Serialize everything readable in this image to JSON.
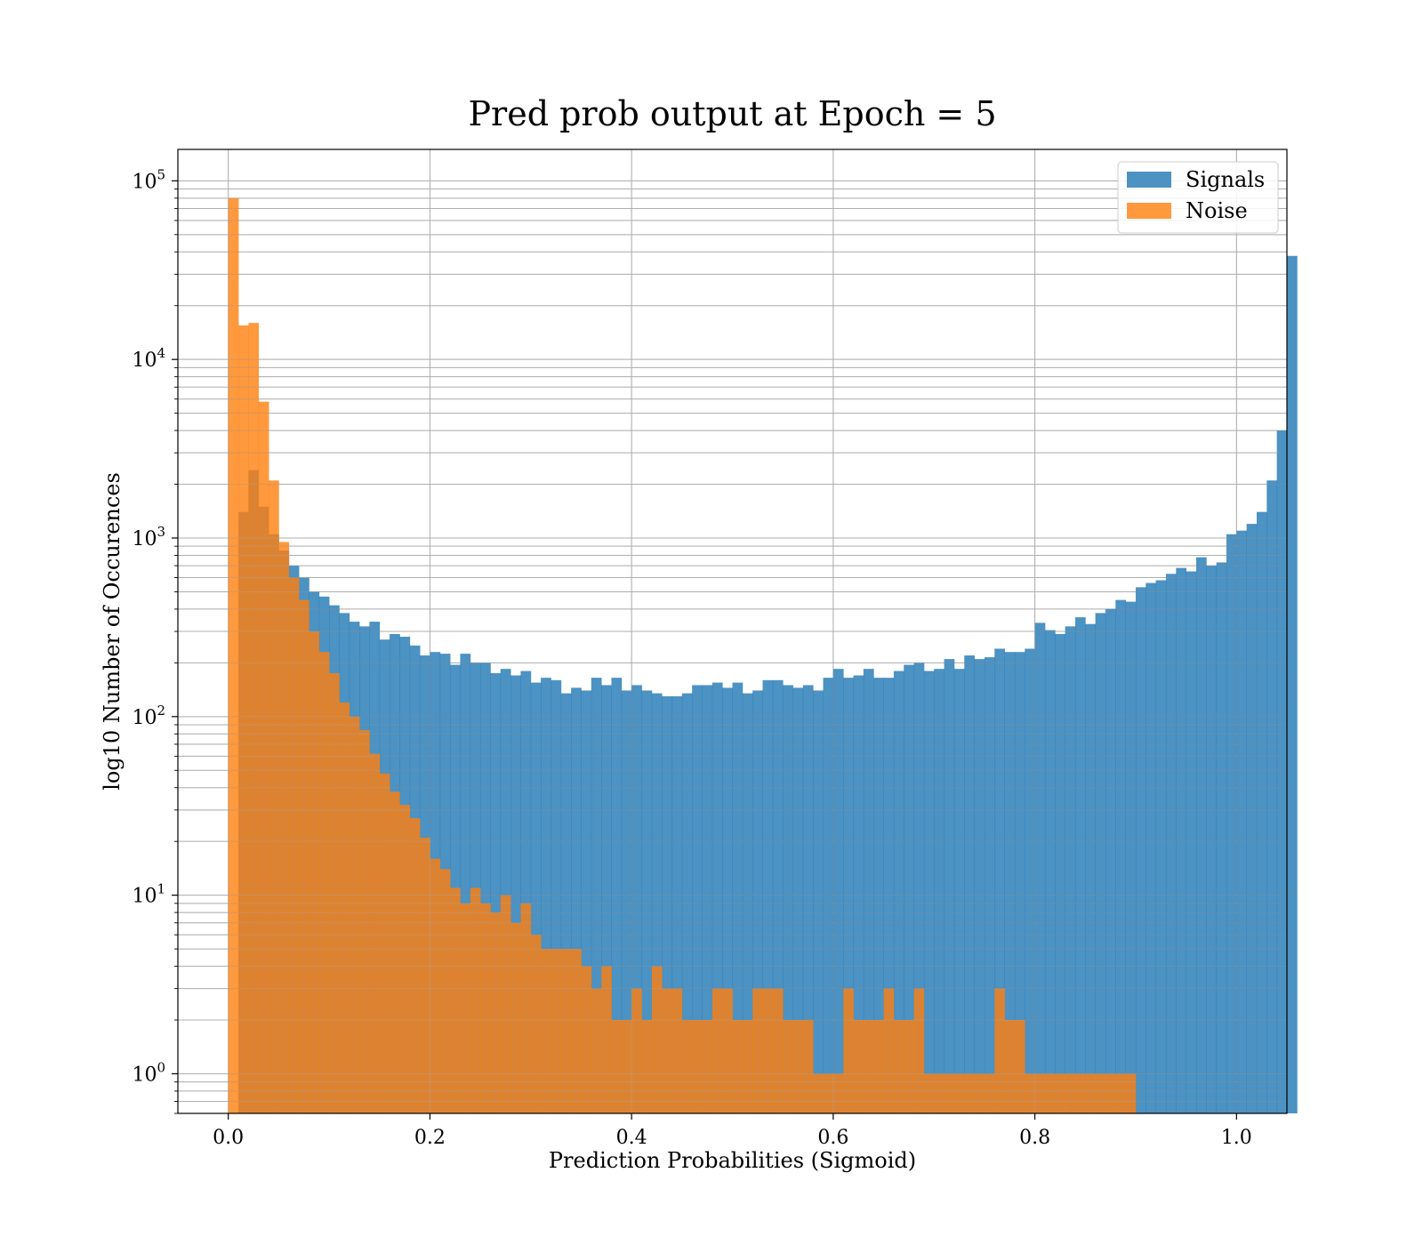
{
  "chart_data": {
    "type": "bar",
    "subtype": "overlapping-histogram",
    "title": "Pred prob output at Epoch = 5",
    "xlabel": "Prediction Probabilities (Sigmoid)",
    "ylabel": "log10 Number of Occurences",
    "yscale": "log",
    "xlim": [
      -0.05,
      1.05
    ],
    "ylim": [
      0.6,
      150000
    ],
    "grid": true,
    "legend_position": "top-right",
    "bin_width": 0.01,
    "bins_start": 0.0,
    "xticks": [
      {
        "value": 0.0,
        "label": "0.0"
      },
      {
        "value": 0.2,
        "label": "0.2"
      },
      {
        "value": 0.4,
        "label": "0.4"
      },
      {
        "value": 0.6,
        "label": "0.6"
      },
      {
        "value": 0.8,
        "label": "0.8"
      },
      {
        "value": 1.0,
        "label": "1.0"
      }
    ],
    "yticks": [
      {
        "value": 1,
        "base": "10",
        "exp": "0"
      },
      {
        "value": 10,
        "base": "10",
        "exp": "1"
      },
      {
        "value": 100,
        "base": "10",
        "exp": "2"
      },
      {
        "value": 1000,
        "base": "10",
        "exp": "3"
      },
      {
        "value": 10000,
        "base": "10",
        "exp": "4"
      },
      {
        "value": 100000,
        "base": "10",
        "exp": "5"
      }
    ],
    "series": [
      {
        "name": "Signals",
        "color": "#1f77b4",
        "values": [
          0,
          1400,
          2400,
          1500,
          1050,
          850,
          700,
          600,
          500,
          470,
          420,
          380,
          340,
          320,
          340,
          270,
          290,
          280,
          250,
          220,
          230,
          225,
          195,
          225,
          200,
          200,
          175,
          185,
          170,
          180,
          155,
          165,
          160,
          135,
          145,
          140,
          165,
          150,
          165,
          140,
          150,
          140,
          135,
          130,
          130,
          135,
          150,
          150,
          155,
          145,
          155,
          135,
          140,
          160,
          160,
          150,
          145,
          150,
          140,
          165,
          185,
          165,
          170,
          185,
          165,
          165,
          180,
          195,
          200,
          180,
          185,
          210,
          185,
          220,
          210,
          215,
          240,
          230,
          230,
          240,
          335,
          305,
          290,
          320,
          360,
          330,
          380,
          400,
          450,
          440,
          530,
          560,
          580,
          630,
          680,
          650,
          780,
          700,
          730,
          1050,
          1100,
          1200,
          1400,
          2100,
          4000,
          38000
        ]
      },
      {
        "name": "Noise",
        "color": "#ff7f0e",
        "values": [
          80000,
          15500,
          16000,
          5800,
          2100,
          950,
          600,
          450,
          300,
          230,
          175,
          120,
          100,
          84,
          62,
          48,
          38,
          32,
          27,
          21,
          16,
          14,
          11,
          9,
          11,
          9,
          8,
          10,
          7,
          9,
          6,
          5,
          5,
          5,
          5,
          4,
          3,
          4,
          2,
          2,
          3,
          2,
          4,
          3,
          3,
          2,
          2,
          2,
          3,
          3,
          2,
          2,
          3,
          3,
          3,
          2,
          2,
          2,
          1,
          1,
          1,
          3,
          2,
          2,
          2,
          3,
          2,
          2,
          3,
          1,
          1,
          1,
          1,
          1,
          1,
          1,
          3,
          2,
          2,
          1,
          1,
          1,
          1,
          1,
          1,
          1,
          1,
          1,
          1,
          1
        ]
      }
    ]
  }
}
